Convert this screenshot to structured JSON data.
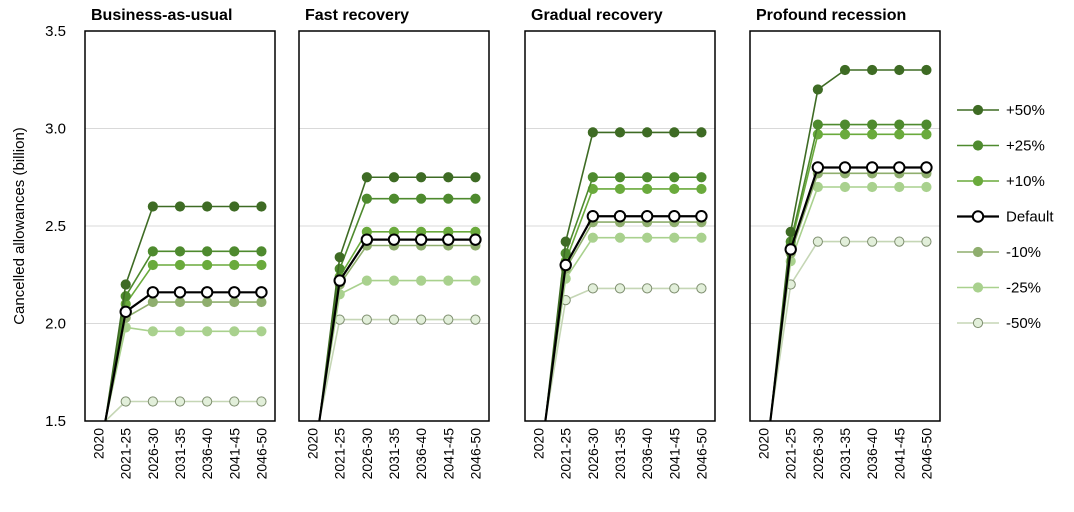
{
  "chart_data": {
    "type": "line",
    "ylabel": "Cancelled allowances (billion)",
    "ylim": [
      1.5,
      3.5
    ],
    "yticks": [
      "1.5",
      "2.0",
      "2.5",
      "3.0",
      "3.5"
    ],
    "grid": true,
    "legend_position": "right",
    "categories": [
      "2020",
      "2021-25",
      "2026-30",
      "2031-35",
      "2036-40",
      "2041-45",
      "2046-50"
    ],
    "series_legend": [
      {
        "key": "p50",
        "name": "+50%",
        "color": "#3e6b24",
        "fill": "#3e6b24"
      },
      {
        "key": "p25",
        "name": "+25%",
        "color": "#4e8a2e",
        "fill": "#4e8a2e"
      },
      {
        "key": "p10",
        "name": "+10%",
        "color": "#6aaa3c",
        "fill": "#6aaa3c"
      },
      {
        "key": "def",
        "name": "Default",
        "color": "#000000",
        "fill": "#ffffff"
      },
      {
        "key": "m10",
        "name": "-10%",
        "color": "#8fae6e",
        "fill": "#8fae6e"
      },
      {
        "key": "m25",
        "name": "-25%",
        "color": "#a9d18e",
        "fill": "#a9d18e"
      },
      {
        "key": "m50",
        "name": "-50%",
        "color": "#c5d6b5",
        "fill": "#e2efda"
      }
    ],
    "panels": [
      {
        "title": "Business-as-usual",
        "series": {
          "p50": [
            null,
            2.2,
            2.6,
            2.6,
            2.6,
            2.6,
            2.6
          ],
          "p25": [
            null,
            2.14,
            2.37,
            2.37,
            2.37,
            2.37,
            2.37
          ],
          "p10": [
            null,
            2.1,
            2.3,
            2.3,
            2.3,
            2.3,
            2.3
          ],
          "def": [
            null,
            2.06,
            2.16,
            2.16,
            2.16,
            2.16,
            2.16
          ],
          "m10": [
            null,
            2.03,
            2.11,
            2.11,
            2.11,
            2.11,
            2.11
          ],
          "m25": [
            null,
            1.98,
            1.96,
            1.96,
            1.96,
            1.96,
            1.96
          ],
          "m50": [
            null,
            1.6,
            1.6,
            1.6,
            1.6,
            1.6,
            1.6
          ]
        }
      },
      {
        "title": "Fast recovery",
        "series": {
          "p50": [
            null,
            2.34,
            2.75,
            2.75,
            2.75,
            2.75,
            2.75
          ],
          "p25": [
            null,
            2.28,
            2.64,
            2.64,
            2.64,
            2.64,
            2.64
          ],
          "p10": [
            null,
            2.24,
            2.47,
            2.47,
            2.47,
            2.47,
            2.47
          ],
          "def": [
            null,
            2.22,
            2.43,
            2.43,
            2.43,
            2.43,
            2.43
          ],
          "m10": [
            null,
            2.2,
            2.4,
            2.4,
            2.4,
            2.4,
            2.4
          ],
          "m25": [
            null,
            2.15,
            2.22,
            2.22,
            2.22,
            2.22,
            2.22
          ],
          "m50": [
            null,
            2.02,
            2.02,
            2.02,
            2.02,
            2.02,
            2.02
          ]
        }
      },
      {
        "title": "Gradual recovery",
        "series": {
          "p50": [
            null,
            2.42,
            2.98,
            2.98,
            2.98,
            2.98,
            2.98
          ],
          "p25": [
            null,
            2.36,
            2.75,
            2.75,
            2.75,
            2.75,
            2.75
          ],
          "p10": [
            null,
            2.32,
            2.69,
            2.69,
            2.69,
            2.69,
            2.69
          ],
          "def": [
            null,
            2.3,
            2.55,
            2.55,
            2.55,
            2.55,
            2.55
          ],
          "m10": [
            null,
            2.28,
            2.52,
            2.52,
            2.52,
            2.52,
            2.52
          ],
          "m25": [
            null,
            2.23,
            2.44,
            2.44,
            2.44,
            2.44,
            2.44
          ],
          "m50": [
            null,
            2.12,
            2.18,
            2.18,
            2.18,
            2.18,
            2.18
          ]
        }
      },
      {
        "title": "Profound recession",
        "series": {
          "p50": [
            null,
            2.47,
            3.2,
            3.3,
            3.3,
            3.3,
            3.3
          ],
          "p25": [
            null,
            2.42,
            3.02,
            3.02,
            3.02,
            3.02,
            3.02
          ],
          "p10": [
            null,
            2.4,
            2.97,
            2.97,
            2.97,
            2.97,
            2.97
          ],
          "def": [
            null,
            2.38,
            2.8,
            2.8,
            2.8,
            2.8,
            2.8
          ],
          "m10": [
            null,
            2.36,
            2.77,
            2.77,
            2.77,
            2.77,
            2.77
          ],
          "m25": [
            null,
            2.32,
            2.7,
            2.7,
            2.7,
            2.7,
            2.7
          ],
          "m50": [
            null,
            2.2,
            2.42,
            2.42,
            2.42,
            2.42,
            2.42
          ]
        }
      }
    ]
  }
}
